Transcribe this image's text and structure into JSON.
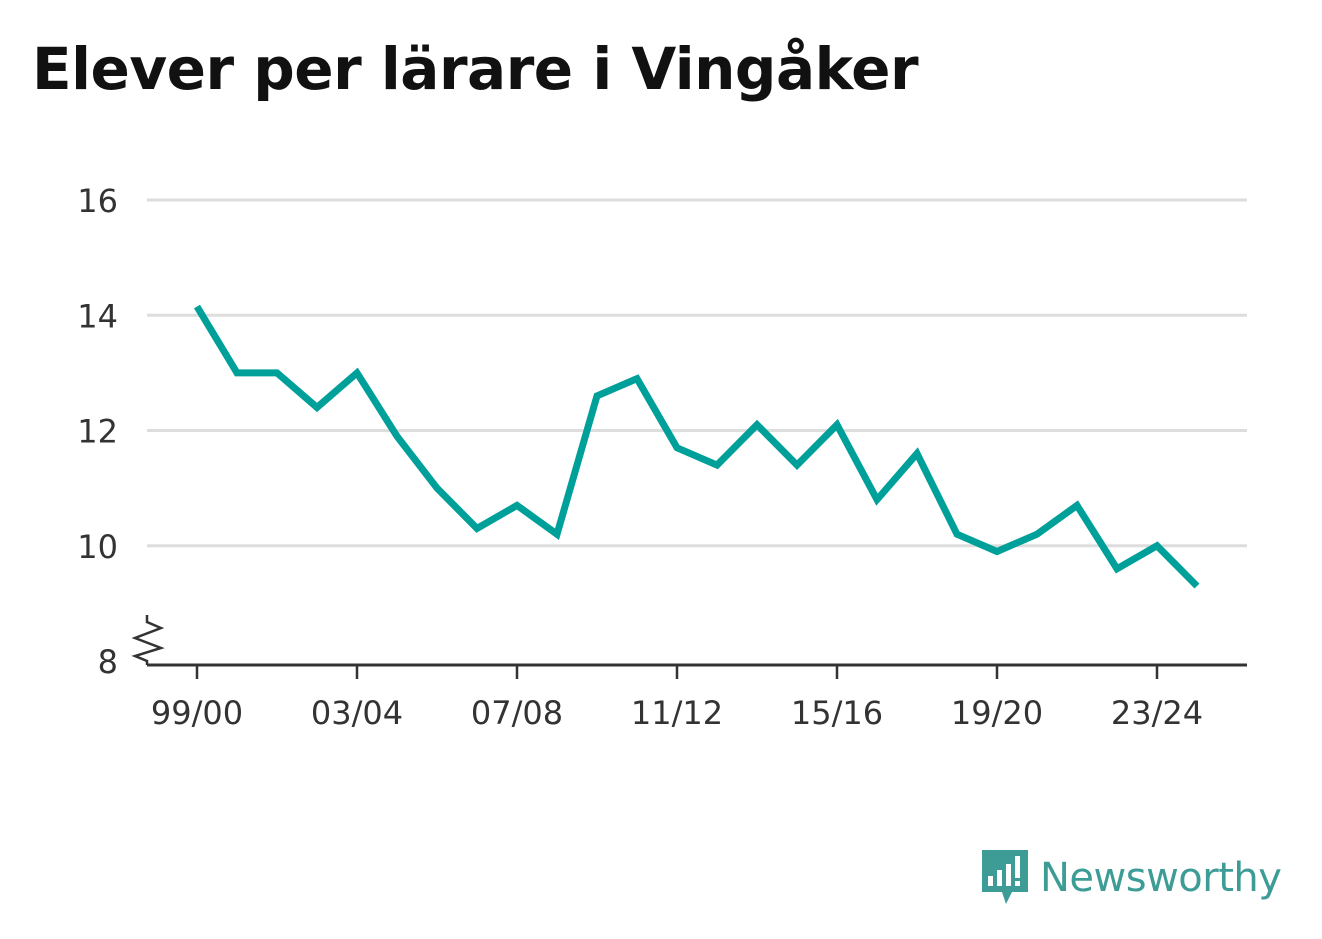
{
  "title": "Elever per lärare i Vingåker",
  "brand": {
    "name": "Newsworthy",
    "icon": "newsworthy-logo-icon",
    "color": "#3d9c96"
  },
  "chart_data": {
    "type": "line",
    "title": "Elever per lärare i Vingåker",
    "xlabel": "",
    "ylabel": "",
    "x": [
      "99/00",
      "00/01",
      "01/02",
      "02/03",
      "03/04",
      "04/05",
      "05/06",
      "06/07",
      "07/08",
      "08/09",
      "09/10",
      "10/11",
      "11/12",
      "12/13",
      "13/14",
      "14/15",
      "15/16",
      "16/17",
      "17/18",
      "18/19",
      "19/20",
      "20/21",
      "21/22",
      "22/23",
      "23/24",
      "24/25"
    ],
    "series": [
      {
        "values": [
          14.15,
          13.0,
          13.0,
          12.4,
          13.0,
          11.9,
          11.0,
          10.3,
          10.7,
          10.2,
          12.6,
          12.9,
          11.7,
          11.4,
          12.1,
          11.4,
          12.1,
          10.8,
          11.6,
          10.2,
          9.9,
          10.2,
          10.7,
          9.6,
          10.0,
          9.3
        ],
        "color": "#00a09a"
      }
    ],
    "x_tick_labels": [
      "99/00",
      "03/04",
      "07/08",
      "11/12",
      "15/16",
      "19/20",
      "23/24"
    ],
    "y_ticks": [
      8,
      10,
      12,
      14,
      16
    ],
    "ylim": [
      8,
      16
    ],
    "y_axis_break": true,
    "grid": true,
    "legend": "none"
  }
}
